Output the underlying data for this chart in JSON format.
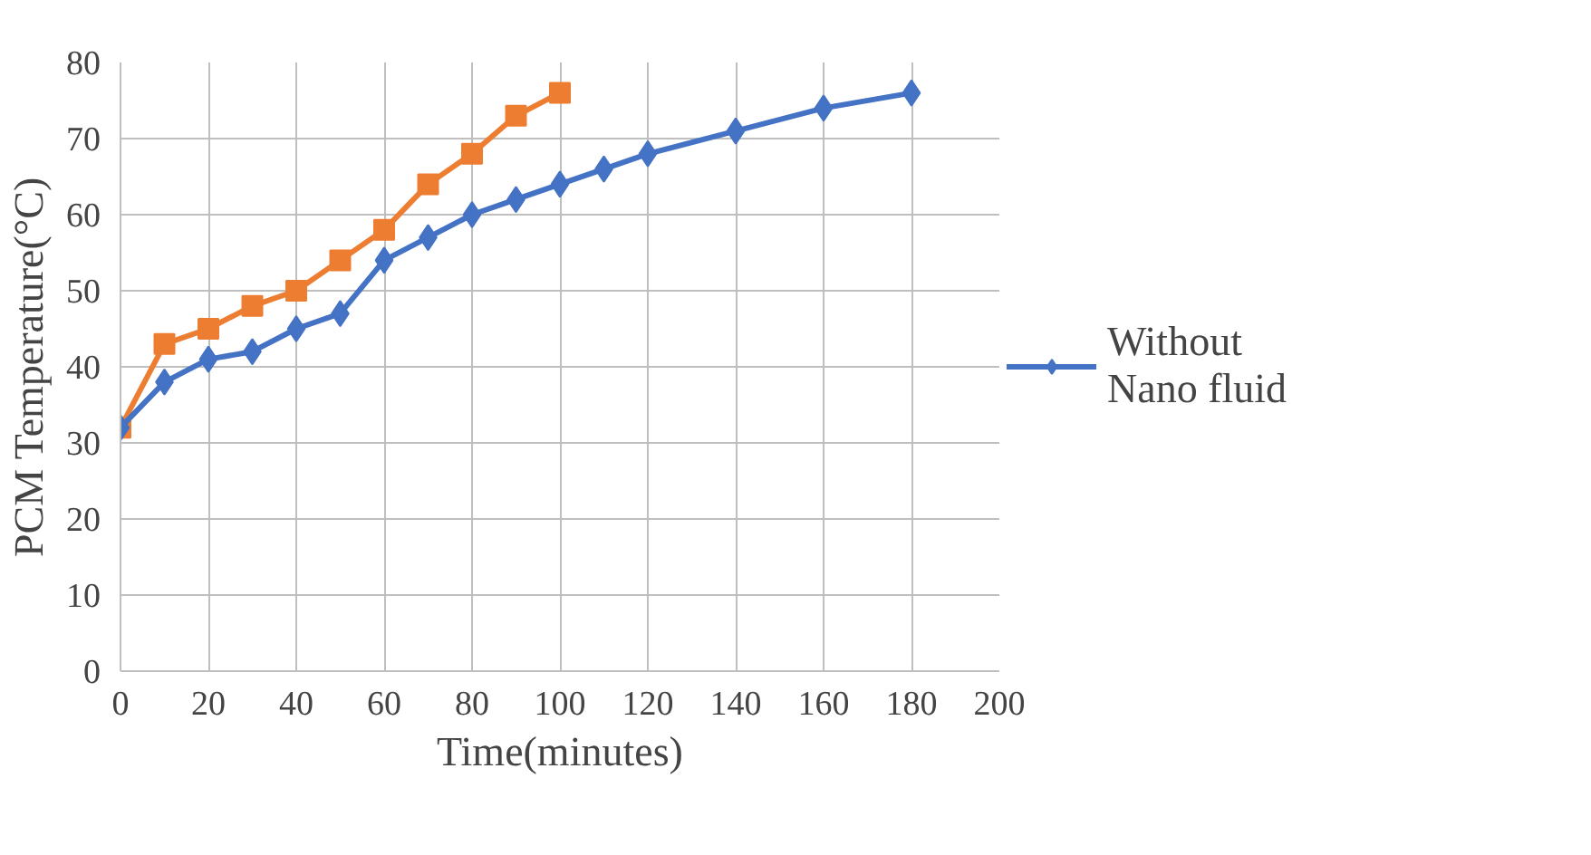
{
  "chart_data": {
    "type": "line",
    "xlabel": "Time(minutes)",
    "ylabel": "PCM Temperature(°C)",
    "xlim": [
      0,
      200
    ],
    "xticks": [
      0,
      20,
      40,
      60,
      80,
      100,
      120,
      140,
      160,
      180,
      200
    ],
    "ylim": [
      0,
      80
    ],
    "yticks": [
      0,
      10,
      20,
      30,
      40,
      50,
      60,
      70,
      80
    ],
    "grid": true,
    "legend": "right",
    "series": [
      {
        "name": "Without Nano fluid",
        "color": "#4472c4",
        "marker": "diamond",
        "x": [
          0,
          10,
          20,
          30,
          40,
          50,
          60,
          70,
          80,
          90,
          100,
          110,
          120,
          140,
          160,
          180
        ],
        "values": [
          32,
          38,
          41,
          42,
          45,
          47,
          54,
          57,
          60,
          62,
          64,
          66,
          68,
          71,
          74,
          76
        ]
      },
      {
        "color": "#ed7d31",
        "marker": "square",
        "x": [
          0,
          10,
          20,
          30,
          40,
          50,
          60,
          70,
          80,
          90,
          100
        ],
        "values": [
          32,
          43,
          45,
          48,
          50,
          54,
          58,
          64,
          68,
          73,
          76
        ]
      }
    ]
  }
}
